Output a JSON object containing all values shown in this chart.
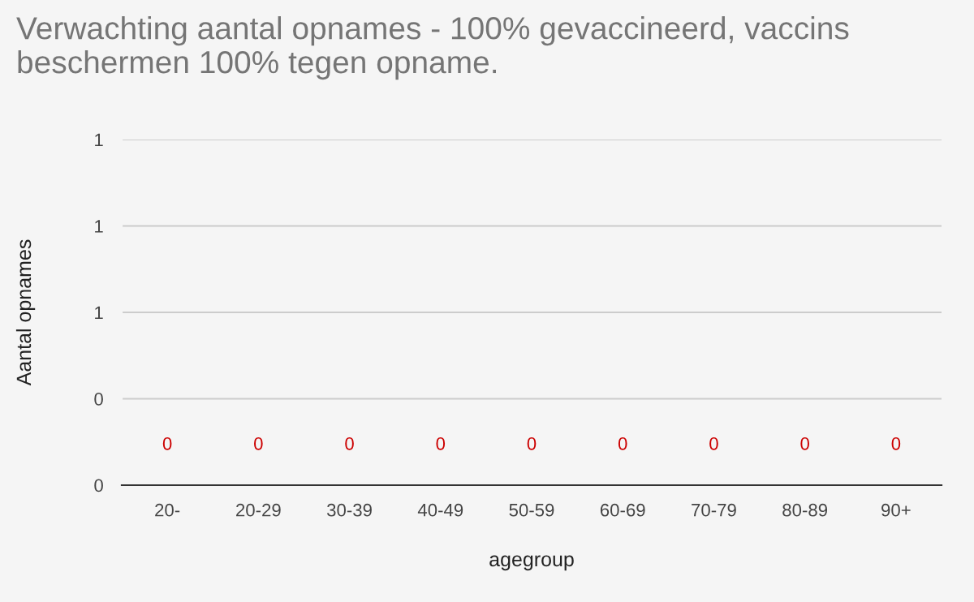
{
  "chart_data": {
    "type": "bar",
    "title": "Verwachting aantal opnames - 100% gevaccineerd, vaccins beschermen 100% tegen opname.",
    "xlabel": "agegroup",
    "ylabel": "Aantal opnames",
    "categories": [
      "20-",
      "20-29",
      "30-39",
      "40-49",
      "50-59",
      "60-69",
      "70-79",
      "80-89",
      "90+"
    ],
    "series": [
      {
        "color": "#cc0000",
        "values": [
          0,
          0,
          0,
          0,
          0,
          0,
          0,
          0,
          0
        ]
      }
    ],
    "data_labels": true,
    "ylim": [
      0,
      1
    ],
    "yticks": [
      0,
      {
        "value": 0.25,
        "label": "0"
      },
      {
        "value": 0.5,
        "label": "1"
      },
      {
        "value": 0.75,
        "label": "1"
      },
      1
    ],
    "grid": "y",
    "legend": false
  }
}
